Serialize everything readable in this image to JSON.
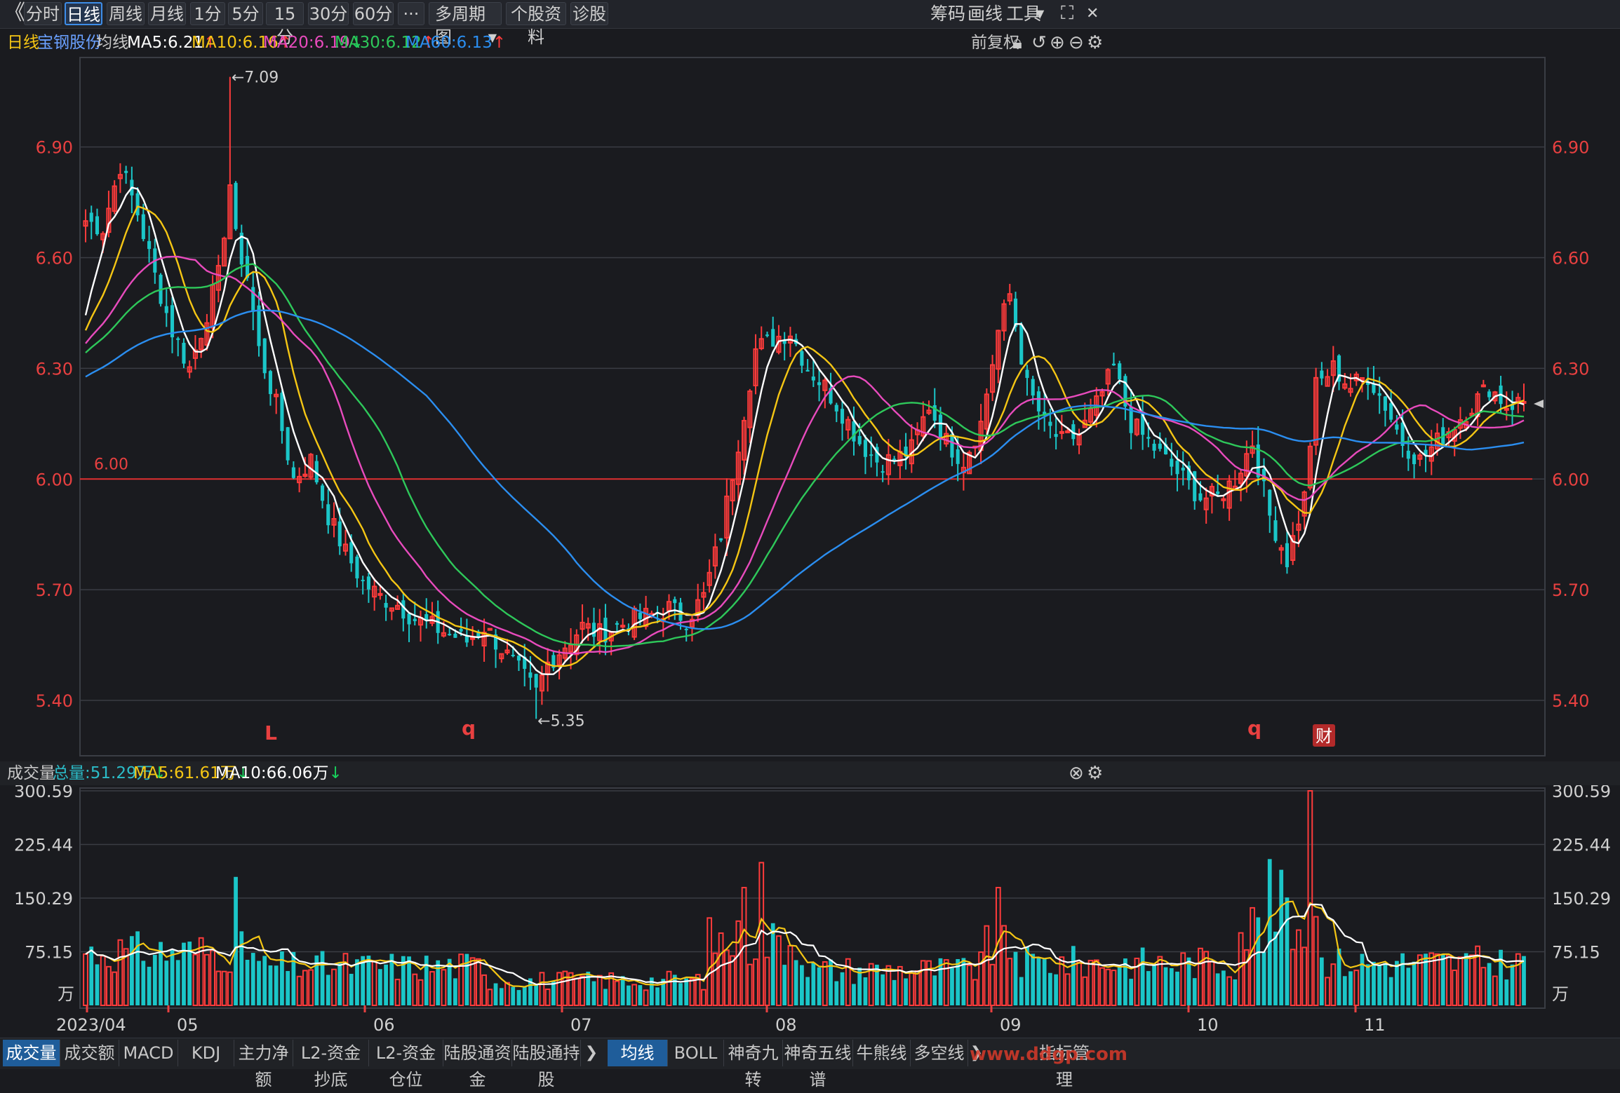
{
  "toolbar": {
    "back_glyph": "《",
    "periods": [
      "分时",
      "日线",
      "周线",
      "月线",
      "1分",
      "5分",
      "15分",
      "30分",
      "60分"
    ],
    "active_period": "日线",
    "more_label": "···",
    "multi_period": "多周期图",
    "stock_info": "个股资料",
    "diagnose": "诊股",
    "chips": "筹码",
    "draw": "画线",
    "tools": "工具"
  },
  "info": {
    "period": "日线",
    "stock_name": "宝钢股份",
    "indicator": "均线",
    "ma5": "MA5:6.21",
    "ma10": "MA10:6.16",
    "ma20": "MA20:6.19",
    "ma30": "MA30:6.12",
    "ma60": "MA60:6.13",
    "adjust": "前复权",
    "colors": {
      "ma5": "#ffffff",
      "ma10": "#f5c614",
      "ma20": "#e84bbd",
      "ma30": "#2ec85a",
      "ma60": "#2b8ef0"
    }
  },
  "volume_info": {
    "label": "成交量",
    "total": "总量:51.29万",
    "ma5": "MA5:61.61万",
    "ma10": "MA10:66.06万"
  },
  "chart_data": [
    {
      "type": "candlestick",
      "ylim": [
        5.25,
        7.15
      ],
      "yticks": [
        "6.90",
        "6.60",
        "6.30",
        "6.00",
        "5.70",
        "5.40"
      ],
      "reference_line": {
        "value": 6.0,
        "label": "6.00"
      },
      "annotations": {
        "high": "←7.09",
        "low": "←5.35"
      },
      "markers": [
        "L",
        "q",
        "q",
        "财"
      ],
      "x_months": [
        "2023/04",
        "05",
        "06",
        "07",
        "08",
        "09",
        "10",
        "11"
      ],
      "key_points": [
        {
          "date": "2023/04 start",
          "close": 6.7
        },
        {
          "date": "04 late",
          "close": 6.4
        },
        {
          "date": "05 early",
          "high": 7.09,
          "close": 6.6
        },
        {
          "date": "05 end",
          "close": 5.8
        },
        {
          "date": "06 end",
          "close": 5.45,
          "low": 5.35
        },
        {
          "date": "07",
          "close": 5.6
        },
        {
          "date": "07 end",
          "close": 6.0
        },
        {
          "date": "08 early",
          "close": 6.4
        },
        {
          "date": "08 end",
          "close": 6.1
        },
        {
          "date": "09 early",
          "close": 6.5
        },
        {
          "date": "10 early",
          "close": 5.95
        },
        {
          "date": "10 late",
          "close": 5.8
        },
        {
          "date": "11 early",
          "close": 6.3
        },
        {
          "date": "11 end",
          "close": 6.21
        }
      ]
    },
    {
      "type": "bar",
      "ylabel": "万",
      "yticks": [
        "300.59",
        "225.44",
        "150.29",
        "75.15"
      ]
    }
  ],
  "bottom_tabs": {
    "left": [
      "成交量",
      "成交额",
      "MACD",
      "KDJ",
      "主力净额",
      "L2-资金抄底",
      "L2-资金仓位",
      "陆股通资金",
      "陆股通持股"
    ],
    "right": [
      "均线",
      "BOLL",
      "神奇九转",
      "神奇五线谱",
      "牛熊线",
      "多空线"
    ],
    "manage": "指标管理",
    "active_left": "成交量",
    "active_right": "均线",
    "watermark": "www.ddgp.com"
  }
}
